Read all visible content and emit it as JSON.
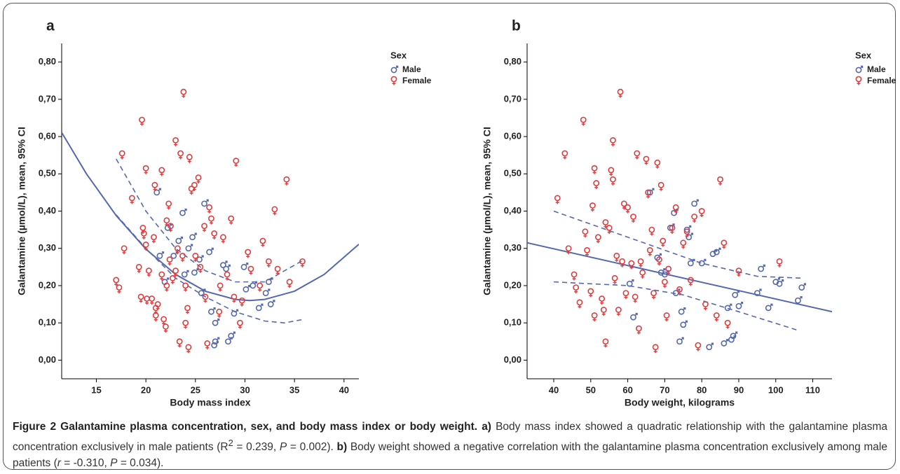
{
  "chart_data": [
    {
      "type": "scatter",
      "panel": "a",
      "xlabel": "Body mass index",
      "ylabel": "Galantamine (µmol/L), mean, 95% CI",
      "xlim": [
        11.5,
        41.5
      ],
      "xticks": [
        15,
        20,
        25,
        30,
        35,
        40
      ],
      "ylim": [
        -0.05,
        0.85
      ],
      "yticks": [
        {
          "value": 0,
          "label": "0,00"
        },
        {
          "value": 0.1,
          "label": "0,10"
        },
        {
          "value": 0.2,
          "label": "0,20"
        },
        {
          "value": 0.3,
          "label": "0,30"
        },
        {
          "value": 0.4,
          "label": "0,40"
        },
        {
          "value": 0.5,
          "label": "0,50"
        },
        {
          "value": 0.6,
          "label": "0,60"
        },
        {
          "value": 0.7,
          "label": "0,70"
        },
        {
          "value": 0.8,
          "label": "0,80"
        }
      ],
      "legend_title": "Sex",
      "series": [
        {
          "name": "Male",
          "color": "#5567b0",
          "marker": "male",
          "x": [
            21.1,
            21.4,
            21.9,
            22.2,
            22.8,
            23.3,
            23.7,
            23.9,
            24.3,
            24.7,
            24.9,
            25.4,
            25.6,
            25.9,
            26.4,
            26.6,
            26.9,
            27.0,
            27.0,
            27.8,
            28.1,
            28.3,
            28.6,
            28.9,
            29.9,
            30.1,
            30.8,
            31.4,
            32.1,
            32.4,
            32.6
          ],
          "values": [
            0.45,
            0.28,
            0.21,
            0.355,
            0.28,
            0.32,
            0.395,
            0.23,
            0.3,
            0.33,
            0.235,
            0.27,
            0.18,
            0.42,
            0.29,
            0.13,
            0.04,
            0.05,
            0.1,
            0.255,
            0.245,
            0.05,
            0.065,
            0.125,
            0.25,
            0.19,
            0.2,
            0.14,
            0.18,
            0.21,
            0.15
          ]
        },
        {
          "name": "Female",
          "color": "#e03c3c",
          "marker": "female",
          "x": [
            17,
            17.3,
            17.6,
            17.8,
            18.6,
            19.3,
            19.5,
            19.6,
            19.7,
            19.8,
            20,
            20,
            20.1,
            20.3,
            20.6,
            20.8,
            20.9,
            21,
            21,
            21.2,
            21.6,
            21.6,
            21.8,
            22,
            22.1,
            22.1,
            22.3,
            22.5,
            22.7,
            23,
            23.2,
            23.4,
            23.5,
            23.7,
            23.8,
            24,
            24,
            24.2,
            24.3,
            24.4,
            24.6,
            24.9,
            25.3,
            25.5,
            25.9,
            26.2,
            26.4,
            26.6,
            26.9,
            27.4,
            27.8,
            28.2,
            28.6,
            29.1,
            29.5,
            30.3,
            30.6,
            31.5,
            31.8,
            32.4,
            33,
            33.3,
            34.2,
            34.5,
            35.8,
            27.5,
            26,
            25,
            23,
            22.4,
            28.9,
            29.7
          ],
          "values": [
            0.215,
            0.195,
            0.555,
            0.3,
            0.435,
            0.25,
            0.17,
            0.645,
            0.355,
            0.34,
            0.515,
            0.31,
            0.165,
            0.24,
            0.165,
            0.33,
            0.47,
            0.14,
            0.12,
            0.15,
            0.51,
            0.23,
            0.11,
            0.09,
            0.2,
            0.375,
            0.42,
            0.36,
            0.22,
            0.59,
            0.3,
            0.05,
            0.555,
            0.28,
            0.72,
            0.2,
            0.1,
            0.14,
            0.035,
            0.545,
            0.46,
            0.47,
            0.49,
            0.25,
            0.36,
            0.045,
            0.41,
            0.38,
            0.34,
            0.13,
            0.33,
            0.23,
            0.38,
            0.535,
            0.1,
            0.29,
            0.245,
            0.2,
            0.32,
            0.265,
            0.405,
            0.245,
            0.485,
            0.21,
            0.265,
            0.2,
            0.17,
            0.28,
            0.24,
            0.27,
            0.17,
            0.16
          ]
        }
      ],
      "fit_lines": [
        {
          "style": "solid",
          "color": "#5567b0",
          "x": [
            11.5,
            14,
            17,
            20,
            23,
            26,
            29,
            30.5,
            32,
            35,
            38,
            41.5
          ],
          "values": [
            0.611,
            0.5,
            0.388,
            0.298,
            0.23,
            0.185,
            0.163,
            0.16,
            0.163,
            0.185,
            0.23,
            0.311
          ]
        },
        {
          "style": "dashed",
          "color": "#5567b0",
          "x": [
            17,
            20,
            23,
            26,
            29,
            32,
            36
          ],
          "values": [
            0.54,
            0.4,
            0.3,
            0.24,
            0.21,
            0.21,
            0.27
          ]
        },
        {
          "style": "dashed",
          "color": "#5567b0",
          "x": [
            17,
            20,
            23,
            26,
            29,
            32,
            34,
            36
          ],
          "values": [
            0.39,
            0.3,
            0.22,
            0.17,
            0.13,
            0.105,
            0.1,
            0.11
          ]
        }
      ]
    },
    {
      "type": "scatter",
      "panel": "b",
      "xlabel": "Body weight, kilograms",
      "ylabel": "Galantamine (µmol/L), mean, 95% CI",
      "xlim": [
        32.8,
        115.2
      ],
      "xticks": [
        40,
        50,
        60,
        70,
        80,
        90,
        100,
        110
      ],
      "ylim": [
        -0.05,
        0.85
      ],
      "yticks": [
        {
          "value": 0,
          "label": "0,00"
        },
        {
          "value": 0.1,
          "label": "0,10"
        },
        {
          "value": 0.2,
          "label": "0,20"
        },
        {
          "value": 0.3,
          "label": "0,30"
        },
        {
          "value": 0.4,
          "label": "0,40"
        },
        {
          "value": 0.5,
          "label": "0,50"
        },
        {
          "value": 0.6,
          "label": "0,60"
        },
        {
          "value": 0.7,
          "label": "0,70"
        },
        {
          "value": 0.8,
          "label": "0,80"
        }
      ],
      "legend_title": "Sex",
      "series": [
        {
          "name": "Male",
          "color": "#5567b0",
          "marker": "male",
          "x": [
            60.5,
            61.5,
            66,
            68,
            69,
            70,
            71.5,
            72.5,
            73,
            74,
            74.5,
            75,
            76,
            76.5,
            77,
            78,
            80,
            82,
            83,
            84,
            86,
            87,
            88,
            88.5,
            89,
            90,
            95,
            96,
            98,
            100,
            101,
            106,
            107
          ],
          "values": [
            0.205,
            0.115,
            0.45,
            0.275,
            0.235,
            0.23,
            0.355,
            0.395,
            0.18,
            0.05,
            0.13,
            0.095,
            0.35,
            0.33,
            0.26,
            0.42,
            0.26,
            0.035,
            0.285,
            0.29,
            0.045,
            0.14,
            0.055,
            0.065,
            0.175,
            0.145,
            0.18,
            0.245,
            0.14,
            0.21,
            0.205,
            0.16,
            0.195
          ]
        },
        {
          "name": "Female",
          "color": "#e03c3c",
          "marker": "female",
          "x": [
            41,
            43,
            44,
            45.5,
            46,
            47,
            48,
            48.5,
            49,
            50,
            50.5,
            51,
            51,
            51.5,
            52,
            53,
            53.5,
            54,
            54,
            55,
            55.5,
            56,
            56,
            56.5,
            57,
            57.5,
            58,
            58.5,
            59,
            59.5,
            60,
            61,
            61.5,
            62,
            62.5,
            63,
            63.5,
            64,
            65,
            65.5,
            66,
            66.5,
            67,
            67.5,
            68,
            68.5,
            69,
            69.5,
            70,
            70.5,
            71,
            72,
            73,
            74,
            75,
            76,
            77,
            78,
            79,
            80,
            81,
            84,
            85,
            86,
            87,
            90,
            101
          ],
          "values": [
            0.435,
            0.555,
            0.3,
            0.23,
            0.195,
            0.155,
            0.645,
            0.345,
            0.295,
            0.185,
            0.415,
            0.515,
            0.12,
            0.475,
            0.33,
            0.165,
            0.135,
            0.05,
            0.37,
            0.355,
            0.51,
            0.59,
            0.485,
            0.22,
            0.28,
            0.135,
            0.72,
            0.265,
            0.42,
            0.18,
            0.41,
            0.26,
            0.385,
            0.17,
            0.555,
            0.085,
            0.265,
            0.235,
            0.54,
            0.45,
            0.295,
            0.35,
            0.18,
            0.035,
            0.53,
            0.27,
            0.47,
            0.32,
            0.21,
            0.12,
            0.245,
            0.355,
            0.41,
            0.19,
            0.315,
            0.345,
            0.215,
            0.385,
            0.04,
            0.4,
            0.15,
            0.12,
            0.485,
            0.315,
            0.1,
            0.24,
            0.265
          ]
        }
      ],
      "fit_lines": [
        {
          "style": "solid",
          "color": "#5567b0",
          "x": [
            32.8,
            115.2
          ],
          "values": [
            0.315,
            0.13
          ]
        },
        {
          "style": "dashed",
          "color": "#5567b0",
          "x": [
            40,
            60,
            80,
            95,
            107
          ],
          "values": [
            0.4,
            0.33,
            0.26,
            0.225,
            0.22
          ]
        },
        {
          "style": "dashed",
          "color": "#5567b0",
          "x": [
            40,
            60,
            75,
            90,
            106
          ],
          "values": [
            0.21,
            0.2,
            0.175,
            0.13,
            0.08
          ]
        }
      ]
    }
  ],
  "caption": {
    "title": "Figure 2 Galantamine plasma concentration, sex, and body mass index or body weight.",
    "a_label": "a)",
    "a_text1": "Body mass index showed a quadratic relationship with the galantamine plasma concentration exclusively in male patients (R",
    "a_sup": "2",
    "a_text2": " = 0.239, ",
    "a_p": "P",
    "a_text3": " = 0.002).",
    "b_label": "b)",
    "b_text1": "Body weight showed a negative correlation with the galantamine plasma concentration exclusively among male patients (",
    "b_r": "r",
    "b_text2": " = -0.310, ",
    "b_p": "P",
    "b_text3": " = 0.034)."
  }
}
